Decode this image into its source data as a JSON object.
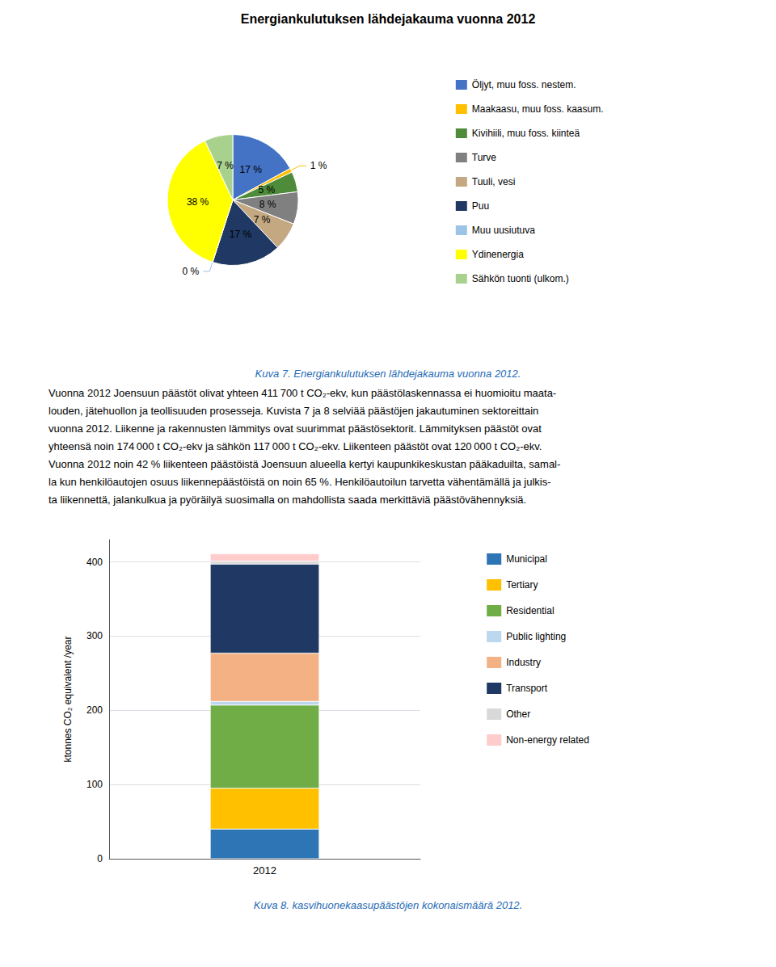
{
  "chart_data": [
    {
      "type": "pie",
      "title": "Energiankulutuksen lähdejakauma vuonna 2012",
      "categories": [
        "Öljyt, muu foss. nestem.",
        "Maakaasu, muu foss. kaasum.",
        "Kivihiili, muu foss. kiinteä",
        "Turve",
        "Tuuli, vesi",
        "Puu",
        "Muu uusiutuva",
        "Ydinenergia",
        "Sähkön tuonti (ulkom.)"
      ],
      "values": [
        17,
        1,
        5,
        8,
        7,
        17,
        0,
        38,
        7
      ],
      "value_labels": [
        "17 %",
        "1 %",
        "5 %",
        "8 %",
        "7 %",
        "17 %",
        "0 %",
        "38 %",
        "7 %"
      ],
      "colors": [
        "#4472C4",
        "#FFC000",
        "#4E8B3A",
        "#808080",
        "#C4A882",
        "#1F3864",
        "#9DC3E6",
        "#FFFF00",
        "#A9D18E"
      ],
      "data_labels": true,
      "legend": "right",
      "annotations": [
        "Kuva 7. Energiankulutuksen lähdejakauma vuonna 2012.",
        "Vuonna 2012 Joensuun päästöt olivat yhteen 411 700 t CO₂-ekv, kun päästölaskennassa ei huomioitu maata-",
        "louden, jätehuollon ja teollisuuden prosesseja. Kuvista 7 ja 8 selviää päästöjen jakautuminen sektoreittain",
        "vuonna 2012. Liikenne ja rakennusten lämmitys ovat suurimmat päästösektorit. Lämmityksen päästöt ovat",
        "yhteensä noin 174 000 t CO₂-ekv ja sähkön 117 000 t CO₂-ekv. Liikenteen päästöt ovat 120 000 t CO₂-ekv.",
        "Vuonna 2012 noin 42 % liikenteen päästöistä Joensuun alueella kertyi kaupunkikeskustan pääkaduilta, samal-",
        "la kun henkilöautojen osuus liikennepäästöistä on noin 65 %. Henkilöautoilun tarvetta vähentämällä ja julkis-",
        "ta liikennettä, jalankulkua ja pyöräilyä suosimalla on mahdollista saada merkittäviä päästövähennyksiä."
      ]
    },
    {
      "type": "bar",
      "categories": [
        "2012"
      ],
      "series": [
        {
          "name": "Municipal",
          "color": "#2E75B6",
          "values": [
            40
          ]
        },
        {
          "name": "Tertiary",
          "color": "#FFC000",
          "values": [
            55
          ]
        },
        {
          "name": "Residential",
          "color": "#70AD47",
          "values": [
            112
          ]
        },
        {
          "name": "Public lighting",
          "color": "#BDD7EE",
          "values": [
            5
          ]
        },
        {
          "name": "Industry",
          "color": "#F4B183",
          "values": [
            65
          ]
        },
        {
          "name": "Transport",
          "color": "#1F3864",
          "values": [
            120
          ]
        },
        {
          "name": "Other",
          "color": "#D9D9D9",
          "values": [
            4
          ]
        },
        {
          "name": "Non-energy related",
          "color": "#FFCCCC",
          "values": [
            10
          ]
        }
      ],
      "ylabel": "ktonnes CO₂ equivalent /year",
      "ylim": [
        0,
        430
      ],
      "yticks": [
        0,
        100,
        200,
        300,
        400
      ],
      "stacked": true,
      "grid": true,
      "legend": "right",
      "annotations": [
        "Kuva 8. kasvihuonekaasupäästöjen kokonaismäärä 2012."
      ]
    }
  ]
}
